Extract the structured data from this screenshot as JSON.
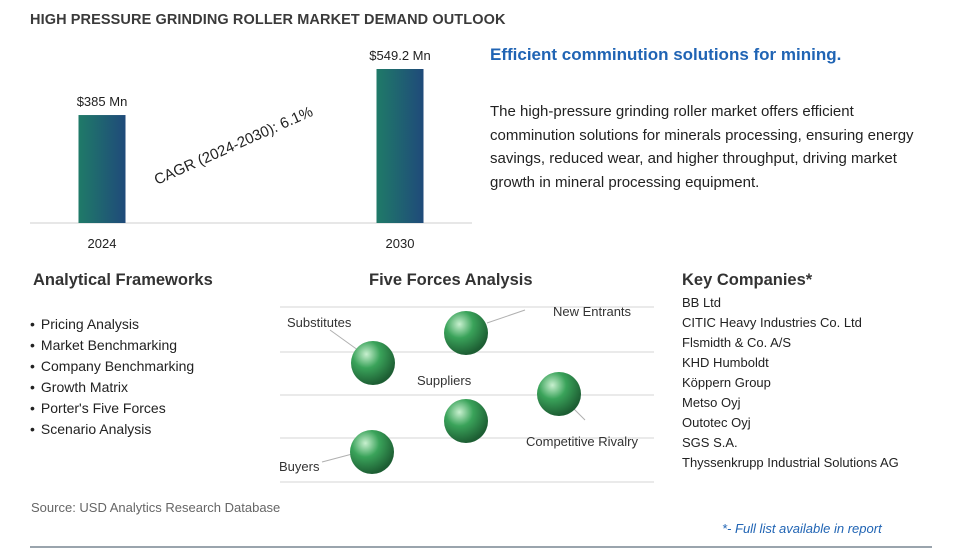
{
  "title": "HIGH PRESSURE GRINDING ROLLER MARKET DEMAND OUTLOOK",
  "chart_data": {
    "type": "bar",
    "categories": [
      "2024",
      "2030"
    ],
    "values": [
      385,
      549.2
    ],
    "value_labels": [
      "$385  Mn",
      "$549.2  Mn"
    ],
    "annotation": "CAGR (2024-2030):  6.1%",
    "ylim": [
      0,
      549.2
    ],
    "grid": false,
    "legend": "none",
    "bar_gradient": [
      "#1f7a68",
      "#1f4a7a"
    ]
  },
  "tagline": "Efficient comminution solutions for mining.",
  "description": "The high-pressure grinding roller market offers efficient comminution solutions for minerals processing, ensuring energy savings, reduced wear, and higher throughput, driving market growth in mineral processing equipment.",
  "frameworks": {
    "heading": "Analytical Frameworks",
    "items": [
      "Pricing Analysis",
      "Market Benchmarking",
      "Company Benchmarking",
      "Growth Matrix",
      "Porter's Five Forces",
      "Scenario Analysis"
    ]
  },
  "five_forces": {
    "heading": "Five Forces Analysis",
    "labels": [
      "Substitutes",
      "New Entrants",
      "Suppliers",
      "Competitive Rivalry",
      "Buyers"
    ],
    "sphere_color": "#3aa35a"
  },
  "companies": {
    "heading": "Key Companies*",
    "items": [
      "BB Ltd",
      "CITIC Heavy Industries Co. Ltd",
      "Flsmidth & Co. A/S",
      "KHD Humboldt",
      "Köppern Group",
      "Metso Oyj",
      "Outotec Oyj",
      "SGS S.A.",
      "Thyssenkrupp Industrial Solutions AG"
    ]
  },
  "source": "Source: USD Analytics Research Database",
  "footnote": "*- Full list available in report"
}
